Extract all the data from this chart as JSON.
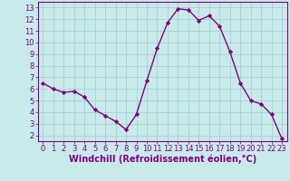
{
  "x": [
    0,
    1,
    2,
    3,
    4,
    5,
    6,
    7,
    8,
    9,
    10,
    11,
    12,
    13,
    14,
    15,
    16,
    17,
    18,
    19,
    20,
    21,
    22,
    23
  ],
  "y": [
    6.5,
    6.0,
    5.7,
    5.8,
    5.3,
    4.2,
    3.7,
    3.2,
    2.5,
    3.8,
    6.7,
    9.5,
    11.7,
    12.9,
    12.8,
    11.9,
    12.3,
    11.4,
    9.2,
    6.5,
    5.0,
    4.7,
    3.8,
    1.7
  ],
  "line_color": "#800080",
  "marker": "D",
  "marker_size": 2.2,
  "bg_color": "#c8eaea",
  "grid_color": "#a0cccc",
  "xlabel": "Windchill (Refroidissement éolien,°C)",
  "xlabel_color": "#800080",
  "xlabel_fontsize": 7,
  "xlim": [
    -0.5,
    23.5
  ],
  "ylim": [
    1.5,
    13.5
  ],
  "yticks": [
    2,
    3,
    4,
    5,
    6,
    7,
    8,
    9,
    10,
    11,
    12,
    13
  ],
  "xticks": [
    0,
    1,
    2,
    3,
    4,
    5,
    6,
    7,
    8,
    9,
    10,
    11,
    12,
    13,
    14,
    15,
    16,
    17,
    18,
    19,
    20,
    21,
    22,
    23
  ],
  "tick_fontsize": 6,
  "tick_color": "#800080",
  "spine_color": "#800080",
  "linewidth": 1.0
}
